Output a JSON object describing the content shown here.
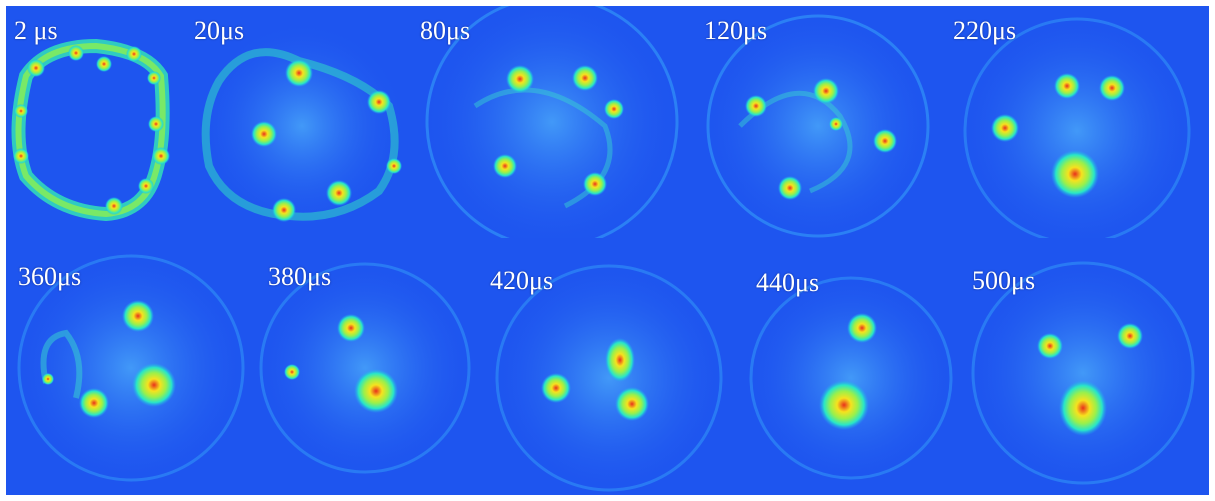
{
  "figure": {
    "rows": [
      {
        "panels": [
          {
            "time_label": "2 μs",
            "vortex_count": 11
          },
          {
            "time_label": "20μs",
            "vortex_count": 6
          },
          {
            "time_label": "80μs",
            "vortex_count": 5
          },
          {
            "time_label": "120μs",
            "vortex_count": 5
          },
          {
            "time_label": "220μs",
            "vortex_count": 4
          }
        ]
      },
      {
        "panels": [
          {
            "time_label": "360μs",
            "vortex_count": 4
          },
          {
            "time_label": "380μs",
            "vortex_count": 3
          },
          {
            "time_label": "420μs",
            "vortex_count": 3
          },
          {
            "time_label": "440μs",
            "vortex_count": 2
          },
          {
            "time_label": "500μs",
            "vortex_count": 3
          }
        ]
      }
    ],
    "colormap": [
      "#1e55ef",
      "#1fa8f0",
      "#28e6c8",
      "#9bf04a",
      "#f6e21e",
      "#f59a1a",
      "#e8301c"
    ]
  }
}
